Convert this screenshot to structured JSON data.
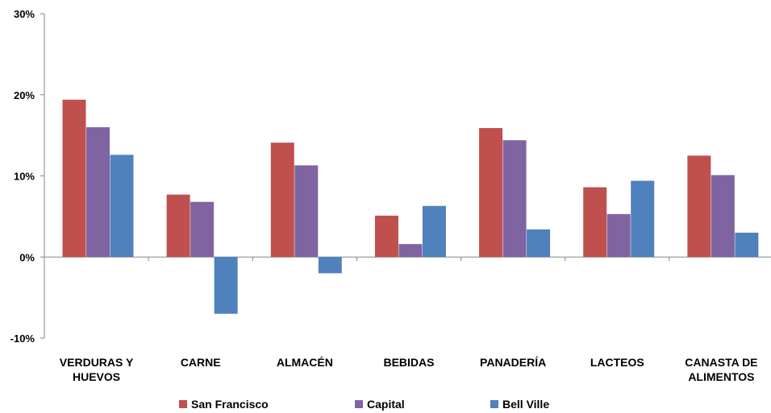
{
  "chart_data": {
    "type": "bar",
    "categories": [
      [
        "VERDURAS Y",
        "HUEVOS"
      ],
      [
        "CARNE"
      ],
      [
        "ALMACÉN"
      ],
      [
        "BEBIDAS"
      ],
      [
        "PANADERÍA"
      ],
      [
        "LACTEOS"
      ],
      [
        "CANASTA DE",
        "ALIMENTOS"
      ]
    ],
    "series": [
      {
        "name": "San Francisco",
        "color": "#C0504D",
        "values": [
          19.4,
          7.7,
          14.1,
          5.1,
          15.9,
          8.6,
          12.5
        ]
      },
      {
        "name": "Capital",
        "color": "#8064A2",
        "values": [
          16.0,
          6.8,
          11.3,
          1.6,
          14.4,
          5.3,
          10.1
        ]
      },
      {
        "name": "Bell Ville",
        "color": "#4F81BD",
        "values": [
          12.6,
          -7.0,
          -2.0,
          6.3,
          3.4,
          9.4,
          3.0
        ]
      }
    ],
    "ylim": [
      -10,
      30
    ],
    "yticks": [
      -10,
      0,
      10,
      20,
      30
    ],
    "ytick_labels": [
      "-10%",
      "0%",
      "10%",
      "20%",
      "30%"
    ],
    "legend_position": "bottom",
    "grid": false,
    "title": "",
    "xlabel": "",
    "ylabel": ""
  }
}
